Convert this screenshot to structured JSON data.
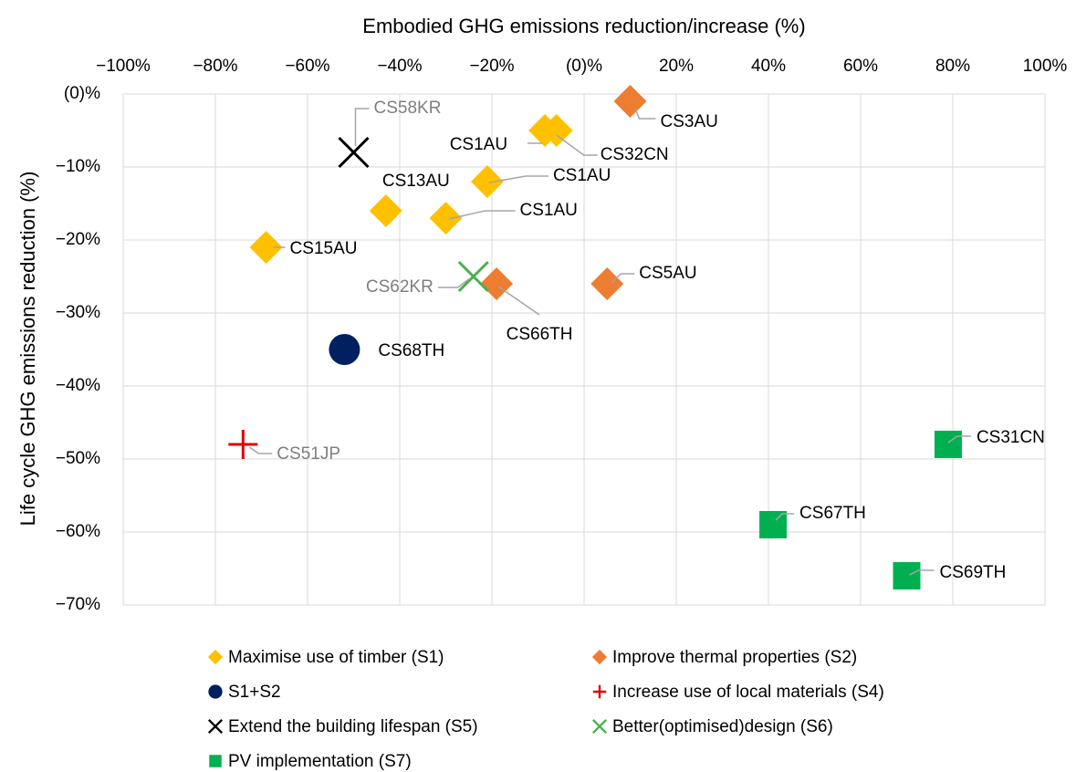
{
  "chart_data": {
    "type": "scatter",
    "x_label": "Embodied GHG emissions reduction/increase (%)",
    "y_label": "Life cycle GHG emissions reduction (%)",
    "xlim": [
      -100,
      100
    ],
    "xticks": [
      {
        "value": -100,
        "label": "−100%"
      },
      {
        "value": -80,
        "label": "−80%"
      },
      {
        "value": -60,
        "label": "−60%"
      },
      {
        "value": -40,
        "label": "−40%"
      },
      {
        "value": -20,
        "label": "−20%"
      },
      {
        "value": 0,
        "label": "(0)%"
      },
      {
        "value": 20,
        "label": "20%"
      },
      {
        "value": 40,
        "label": "40%"
      },
      {
        "value": 60,
        "label": "60%"
      },
      {
        "value": 80,
        "label": "80%"
      },
      {
        "value": 100,
        "label": "100%"
      }
    ],
    "ylim": [
      -70,
      0
    ],
    "yticks": [
      {
        "value": 0,
        "label": "(0)%"
      },
      {
        "value": -10,
        "label": "−10%"
      },
      {
        "value": -20,
        "label": "−20%"
      },
      {
        "value": -30,
        "label": "−30%"
      },
      {
        "value": -40,
        "label": "−40%"
      },
      {
        "value": -50,
        "label": "−50%"
      },
      {
        "value": -60,
        "label": "−60%"
      },
      {
        "value": -70,
        "label": "−70%"
      }
    ],
    "grid": true,
    "legend": "bottom",
    "series": [
      {
        "name": "Maximise use of timber (S1)",
        "color": "#FFC000",
        "marker": "diamond",
        "label_color": "#000000",
        "x": [
          -8.5,
          -6,
          -21,
          -30,
          -43,
          -69
        ],
        "values": [
          -5,
          -5,
          -12,
          -17,
          -16,
          -21
        ],
        "labels": [
          "CS1AU",
          "CS32CN",
          "CS1AU",
          "CS1AU",
          "CS13AU",
          "CS15AU"
        ]
      },
      {
        "name": "Improve thermal properties (S2)",
        "color": "#ED7D31",
        "marker": "diamond",
        "label_color": "#000000",
        "x": [
          10,
          5,
          -19
        ],
        "values": [
          -1,
          -26,
          -26
        ],
        "labels": [
          "CS3AU",
          "CS5AU",
          "CS66TH"
        ]
      },
      {
        "name": "S1+S2",
        "color": "#002060",
        "marker": "circle",
        "label_color": "#000000",
        "x": [
          -52
        ],
        "values": [
          -35
        ],
        "labels": [
          "CS68TH"
        ]
      },
      {
        "name": "Increase use of local materials (S4)",
        "color": "#E00000",
        "marker": "plus",
        "label_color": "#7f7f7f",
        "x": [
          -74
        ],
        "values": [
          -48
        ],
        "labels": [
          "CS51JP"
        ]
      },
      {
        "name": "Extend the building lifespan (S5)",
        "color": "#000000",
        "marker": "cross",
        "label_color": "#7f7f7f",
        "x": [
          -50
        ],
        "values": [
          -8
        ],
        "labels": [
          "CS58KR"
        ]
      },
      {
        "name": "Better(optimised)design (S6)",
        "color": "#4CAF50",
        "marker": "cross",
        "label_color": "#7f7f7f",
        "x": [
          -24
        ],
        "values": [
          -25
        ],
        "labels": [
          "CS62KR"
        ]
      },
      {
        "name": "PV implementation (S7)",
        "color": "#00B050",
        "marker": "square",
        "label_color": "#000000",
        "x": [
          79,
          41,
          70
        ],
        "values": [
          -48,
          -59,
          -66
        ],
        "labels": [
          "CS31CN",
          "CS67TH",
          "CS69TH"
        ]
      }
    ]
  }
}
